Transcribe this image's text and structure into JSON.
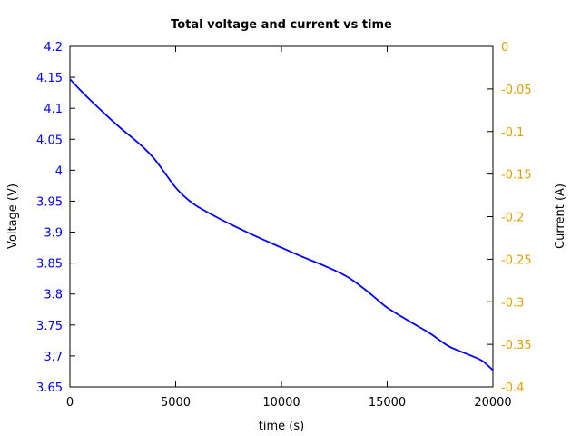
{
  "chart_data": {
    "type": "line",
    "title": "Total voltage and current vs time",
    "xlabel": "time (s)",
    "ylabel_left": "Voltage (V)",
    "ylabel_right": "Current (A)",
    "xlim": [
      0,
      20000
    ],
    "ylim_left": [
      3.65,
      4.2
    ],
    "ylim_right": [
      -0.4,
      0
    ],
    "x_ticks": [
      "0",
      "5000",
      "10000",
      "15000",
      "20000"
    ],
    "x_tick_values": [
      0,
      5000,
      10000,
      15000,
      20000
    ],
    "y_left_ticks": [
      "4.2",
      "4.15",
      "4.1",
      "4.05",
      "4",
      "3.95",
      "3.9",
      "3.85",
      "3.8",
      "3.75",
      "3.7",
      "3.65"
    ],
    "y_left_tick_values": [
      4.2,
      4.15,
      4.1,
      4.05,
      4.0,
      3.95,
      3.9,
      3.85,
      3.8,
      3.75,
      3.7,
      3.65
    ],
    "y_right_ticks": [
      "0",
      "-0.05",
      "-0.1",
      "-0.15",
      "-0.2",
      "-0.25",
      "-0.3",
      "-0.35",
      "-0.4"
    ],
    "y_right_tick_values": [
      0,
      -0.05,
      -0.1,
      -0.15,
      -0.2,
      -0.25,
      -0.3,
      -0.35,
      -0.4
    ],
    "grid": false,
    "colors": {
      "voltage": "#0000ff",
      "current_axis": "#e69f00",
      "frame": "#000000"
    },
    "series": [
      {
        "axis": "left",
        "x": [
          0,
          500,
          1000,
          1500,
          2000,
          2500,
          3000,
          3500,
          4000,
          4500,
          5000,
          5500,
          6000,
          7000,
          8000,
          9000,
          10000,
          11000,
          12000,
          13000,
          13500,
          14000,
          14500,
          15000,
          16000,
          17000,
          17500,
          18000,
          19000,
          19500,
          20000
        ],
        "values": [
          4.147,
          4.129,
          4.112,
          4.096,
          4.08,
          4.065,
          4.051,
          4.036,
          4.018,
          3.995,
          3.972,
          3.955,
          3.942,
          3.923,
          3.906,
          3.89,
          3.875,
          3.86,
          3.846,
          3.83,
          3.819,
          3.806,
          3.792,
          3.778,
          3.757,
          3.737,
          3.725,
          3.714,
          3.7,
          3.692,
          3.677
        ]
      }
    ]
  }
}
